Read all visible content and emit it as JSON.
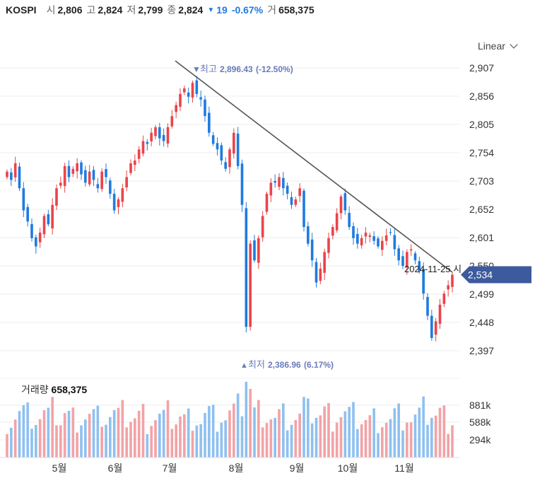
{
  "header": {
    "symbol": "KOSPI",
    "open_label": "시",
    "open": "2,806",
    "high_label": "고",
    "high": "2,824",
    "low_label": "저",
    "low": "2,799",
    "close_label": "종",
    "close": "2,824",
    "change": "19",
    "change_pct": "-0.67%",
    "volume_label": "거",
    "volume": "658,375"
  },
  "scale_mode": "Linear",
  "colors": {
    "up": "#e8454a",
    "down": "#1f7be0",
    "up_vol": "#f2a3a6",
    "down_vol": "#8ec0f0",
    "current_badge": "#3d5a9e",
    "trendline": "#555555"
  },
  "chart_data": {
    "type": "candlestick",
    "y_ticks": [
      "2,907",
      "2,856",
      "2,805",
      "2,754",
      "2,703",
      "2,652",
      "2,601",
      "2,550",
      "2,499",
      "2,448",
      "2,397"
    ],
    "ylim": [
      2360,
      2930
    ],
    "x_ticks": [
      "5월",
      "6월",
      "7월",
      "8월",
      "9월",
      "10월",
      "11월"
    ],
    "current_price": "2,534",
    "high_marker": {
      "label": "최고",
      "value": "2,896.43",
      "pct": "(-12.50%)"
    },
    "low_marker": {
      "label": "최저",
      "value": "2,386.96",
      "pct": "(6.17%)"
    },
    "trendline_label": "2024-11-25 시",
    "trendline": {
      "from": [
        "2024-07-05",
        2910
      ],
      "to": [
        "2024-11-25",
        2545
      ]
    },
    "volume": {
      "title": "거래량",
      "value": "658,375",
      "ticks": [
        "881k",
        "588k",
        "294k"
      ]
    },
    "closes": [
      2720,
      2705,
      2735,
      2690,
      2650,
      2630,
      2600,
      2585,
      2610,
      2640,
      2625,
      2660,
      2690,
      2700,
      2730,
      2710,
      2725,
      2735,
      2715,
      2700,
      2720,
      2705,
      2690,
      2720,
      2710,
      2680,
      2650,
      2670,
      2690,
      2710,
      2735,
      2740,
      2760,
      2775,
      2770,
      2790,
      2800,
      2780,
      2775,
      2800,
      2820,
      2840,
      2860,
      2870,
      2855,
      2880,
      2860,
      2850,
      2820,
      2790,
      2770,
      2760,
      2740,
      2725,
      2760,
      2790,
      2730,
      2660,
      2440,
      2590,
      2560,
      2600,
      2640,
      2680,
      2700,
      2700,
      2710,
      2690,
      2680,
      2660,
      2670,
      2690,
      2620,
      2590,
      2560,
      2520,
      2545,
      2575,
      2600,
      2620,
      2645,
      2675,
      2650,
      2620,
      2600,
      2590,
      2600,
      2610,
      2605,
      2595,
      2585,
      2595,
      2605,
      2610,
      2580,
      2560,
      2550,
      2575,
      2580,
      2560,
      2540,
      2500,
      2460,
      2420,
      2450,
      2480,
      2500,
      2515,
      2534
    ]
  }
}
